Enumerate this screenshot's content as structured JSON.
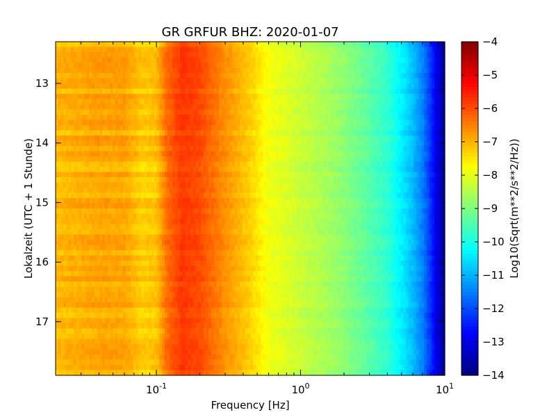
{
  "chart_data": {
    "type": "heatmap",
    "title": "GR GRFUR BHZ: 2020-01-07",
    "xlabel": "Frequency [Hz]",
    "ylabel": "Lokalzeit (UTC + 1 Stunde)",
    "xscale": "log",
    "xlim": [
      0.02,
      10
    ],
    "ylim": [
      17.9,
      12.3
    ],
    "x_ticks": [
      {
        "value": 0.1,
        "base": "10",
        "exp": "-1"
      },
      {
        "value": 1,
        "base": "10",
        "exp": "0"
      },
      {
        "value": 10,
        "base": "10",
        "exp": "1"
      }
    ],
    "y_ticks": [
      {
        "value": 13,
        "label": "13"
      },
      {
        "value": 14,
        "label": "14"
      },
      {
        "value": 15,
        "label": "15"
      },
      {
        "value": 16,
        "label": "16"
      },
      {
        "value": 17,
        "label": "17"
      }
    ],
    "colorbar": {
      "label": "Log10(Sqrt(m**2/s**2/Hz))",
      "colormap": "jet",
      "range": [
        -14,
        -4
      ],
      "ticks": [
        {
          "value": -4,
          "label": "−4"
        },
        {
          "value": -5,
          "label": "−5"
        },
        {
          "value": -6,
          "label": "−6"
        },
        {
          "value": -7,
          "label": "−7"
        },
        {
          "value": -8,
          "label": "−8"
        },
        {
          "value": -9,
          "label": "−9"
        },
        {
          "value": -10,
          "label": "−10"
        },
        {
          "value": -11,
          "label": "−11"
        },
        {
          "value": -12,
          "label": "−12"
        },
        {
          "value": -13,
          "label": "−13"
        },
        {
          "value": -14,
          "label": "−14"
        }
      ]
    },
    "spectrum_profile": {
      "frequency_hz": [
        0.02,
        0.04,
        0.06,
        0.08,
        0.1,
        0.12,
        0.15,
        0.2,
        0.3,
        0.45,
        0.6,
        0.8,
        1.0,
        1.5,
        2.0,
        3.0,
        4.0,
        5.0,
        6.0,
        7.0,
        8.0,
        9.0,
        10.0
      ],
      "value_log10": [
        -7.1,
        -6.9,
        -6.9,
        -7.3,
        -7.2,
        -6.3,
        -5.8,
        -6.0,
        -6.7,
        -7.3,
        -7.9,
        -8.1,
        -8.3,
        -8.6,
        -8.9,
        -9.4,
        -9.8,
        -10.4,
        -10.9,
        -11.5,
        -12.3,
        -13.2,
        -13.8
      ]
    }
  }
}
